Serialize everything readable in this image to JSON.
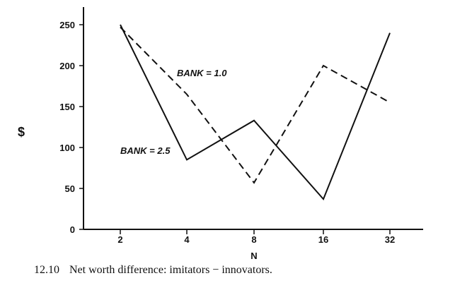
{
  "chart_data": {
    "type": "line",
    "x_type": "category",
    "categories": [
      "2",
      "4",
      "8",
      "16",
      "32"
    ],
    "ylabel": "$",
    "xlabel": "N",
    "ylim": [
      0,
      265
    ],
    "yticks": [
      0,
      50,
      100,
      150,
      200,
      250
    ],
    "grid": false,
    "series": [
      {
        "name": "BANK = 1.0",
        "style": "dashed",
        "values": [
          247,
          165,
          57,
          200,
          155
        ]
      },
      {
        "name": "BANK = 2.5",
        "style": "solid",
        "values": [
          250,
          85,
          133,
          37,
          240
        ]
      }
    ],
    "line_color": "#111111"
  },
  "caption": {
    "number": "12.10",
    "text": "Net worth difference: imitators − innovators."
  }
}
